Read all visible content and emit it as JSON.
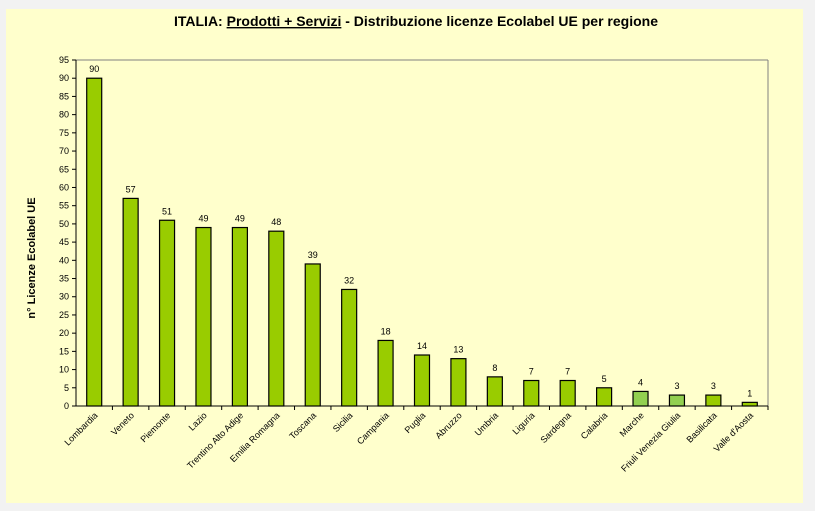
{
  "chart_data": {
    "type": "bar",
    "title_parts": [
      "ITALIA: ",
      "Prodotti + Servizi",
      " - Distribuzione licenze Ecolabel UE per regione"
    ],
    "xlabel": "",
    "ylabel": "n° Licenze  Ecolabel  UE",
    "ylim": [
      0,
      95
    ],
    "ytick_step": 5,
    "grid": false,
    "legend": "none",
    "categories": [
      "Lombardia",
      "Veneto",
      "Piemonte",
      "Lazio",
      "Trentino Alto Adige",
      "Emilia Romagna",
      "Toscana",
      "Sicilia",
      "Campania",
      "Puglia",
      "Abruzzo",
      "Umbria",
      "Liguria",
      "Sardegna",
      "Calabria",
      "Marche",
      "Friuli Venezia Giulia",
      "Basilicata",
      "Valle d'Aosta"
    ],
    "values": [
      90,
      57,
      51,
      49,
      49,
      48,
      39,
      32,
      18,
      14,
      13,
      8,
      7,
      7,
      5,
      4,
      3,
      3,
      1
    ],
    "colors": {
      "bar": "#99cc00",
      "bar_highlight": "#92d050",
      "background": "#ffffcc",
      "page": "#f2f2f2"
    },
    "highlighted_categories": [
      "Marche",
      "Friuli Venezia Giulia"
    ]
  }
}
